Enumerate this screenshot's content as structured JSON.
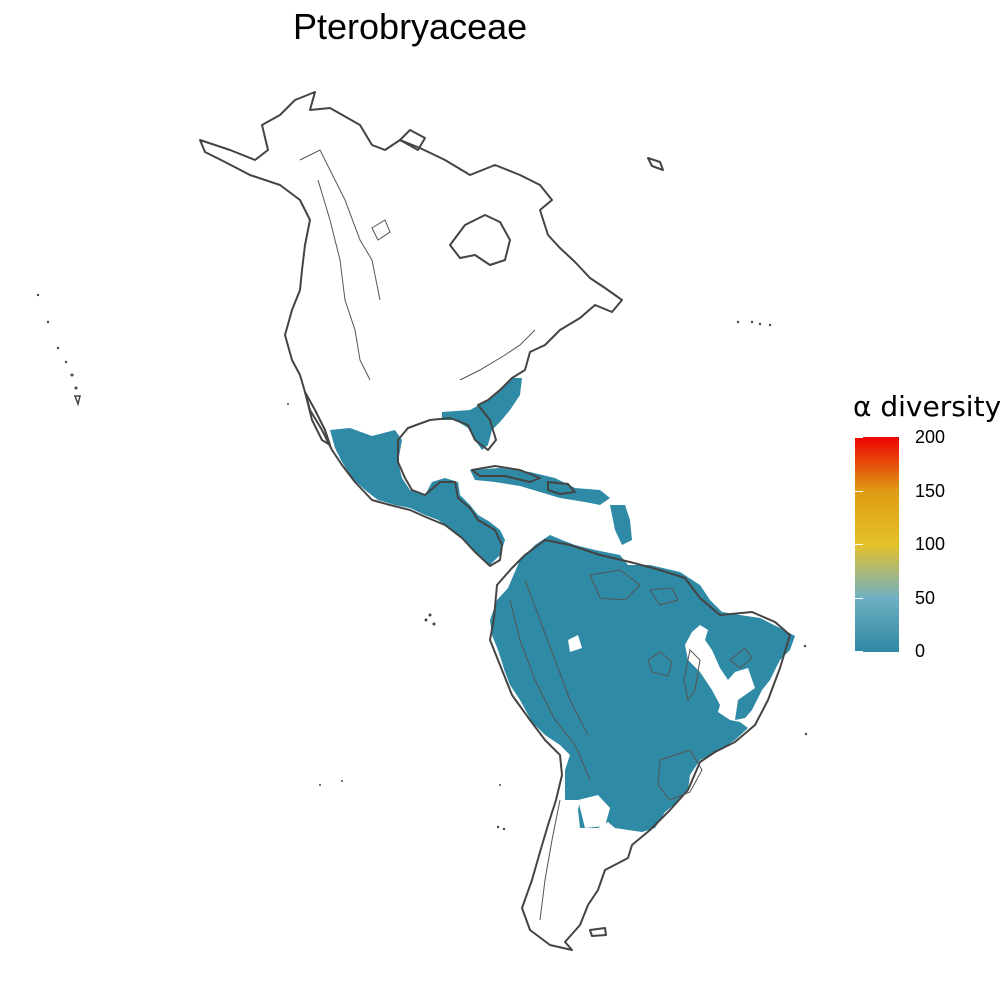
{
  "title": "Pterobryaceae",
  "legend": {
    "title": "α diversity",
    "ticks": [
      "200",
      "150",
      "100",
      "50",
      "0"
    ],
    "tick_values": [
      200,
      150,
      100,
      50,
      0
    ],
    "scale_min": 0,
    "scale_max": 200,
    "color_stops": [
      {
        "value": 0,
        "color": "#2f88a3"
      },
      {
        "value": 50,
        "color": "#6fb0c3"
      },
      {
        "value": 100,
        "color": "#e5c12a"
      },
      {
        "value": 150,
        "color": "#de9c14"
      },
      {
        "value": 200,
        "color": "#ee0000"
      }
    ]
  },
  "colors": {
    "diversity_fill": "#2f8aa5",
    "land_outline": "#444444",
    "background": "#ffffff"
  }
}
